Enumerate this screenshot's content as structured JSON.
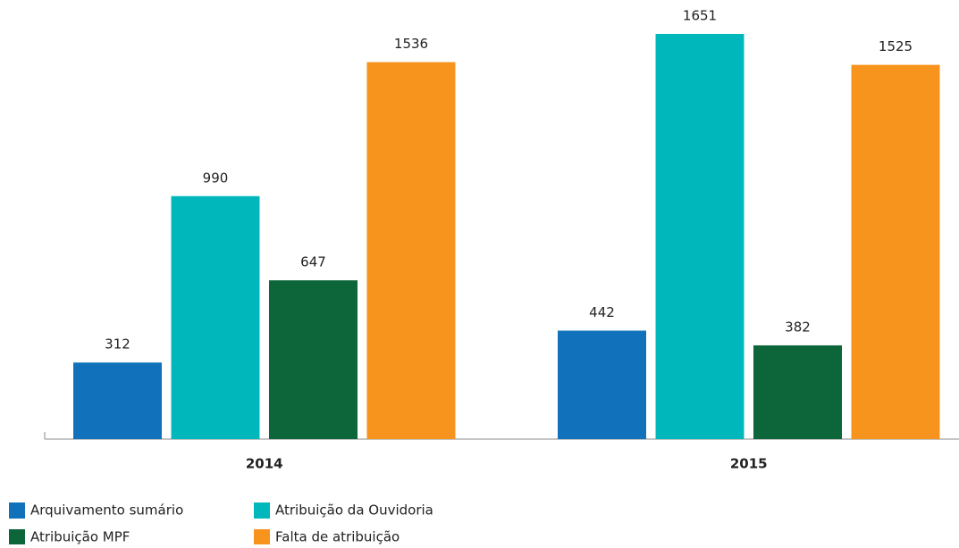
{
  "chart_data": {
    "type": "bar",
    "categories": [
      "2014",
      "2015"
    ],
    "series": [
      {
        "name": "Arquivamento sumário",
        "color": "#1172bb",
        "values": [
          312,
          442
        ]
      },
      {
        "name": "Atribuição da Ouvidoria",
        "color": "#00b8bc",
        "values": [
          990,
          1651
        ]
      },
      {
        "name": "Atribuição MPF",
        "color": "#0d653a",
        "values": [
          647,
          382
        ]
      },
      {
        "name": "Falta de atribuição",
        "color": "#f7941d",
        "values": [
          1536,
          1525
        ]
      }
    ]
  }
}
